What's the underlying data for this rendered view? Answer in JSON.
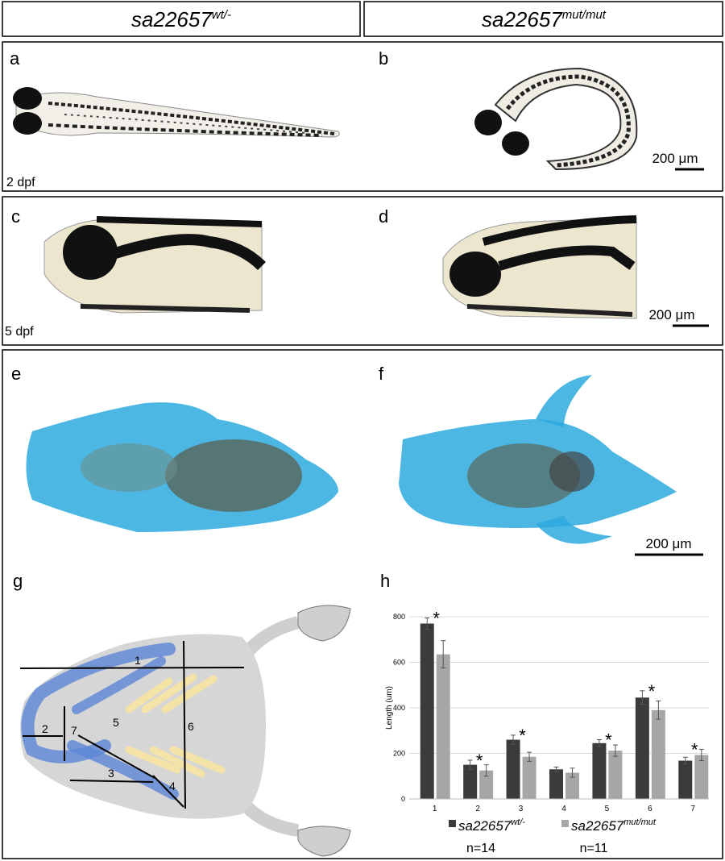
{
  "header": {
    "left": {
      "name": "sa22657",
      "sup": "wt/-"
    },
    "right": {
      "name": "sa22657",
      "sup": "mut/mut"
    }
  },
  "panel_labels": [
    "a",
    "b",
    "c",
    "d",
    "e",
    "f",
    "g",
    "h"
  ],
  "stages": [
    "2 dpf",
    "5 dpf"
  ],
  "scale_bars": [
    "200 μm",
    "200 μm",
    "200 μm"
  ],
  "diagram_labels": [
    "1",
    "2",
    "3",
    "4",
    "5",
    "6",
    "7"
  ],
  "chart_data": {
    "type": "bar",
    "y_label": "Length (um)",
    "categories": [
      "1",
      "2",
      "3",
      "4",
      "5",
      "6",
      "7"
    ],
    "ylim": [
      0,
      800
    ],
    "yticks": [
      0,
      200,
      400,
      600,
      800
    ],
    "grid": true,
    "series": [
      {
        "name": "sa22657",
        "name_sup": "wt/-",
        "n": "n=14",
        "color": "#3b3b3b",
        "values": [
          770,
          150,
          260,
          130,
          245,
          445,
          168
        ],
        "errors": [
          25,
          20,
          20,
          10,
          15,
          30,
          15
        ]
      },
      {
        "name": "sa22657",
        "name_sup": "mut/mut",
        "n": "n=11",
        "color": "#a6a6a6",
        "values": [
          635,
          125,
          185,
          115,
          212,
          390,
          193
        ],
        "errors": [
          60,
          25,
          20,
          20,
          25,
          40,
          25
        ]
      }
    ],
    "significance": [
      "*",
      "*",
      "*",
      null,
      "*",
      "*",
      "*"
    ]
  }
}
